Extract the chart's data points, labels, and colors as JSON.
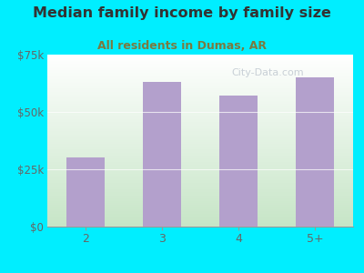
{
  "title": "Median family income by family size",
  "subtitle": "All residents in Dumas, AR",
  "categories": [
    "2",
    "3",
    "4",
    "5+"
  ],
  "values": [
    30000,
    63000,
    57000,
    65000
  ],
  "bar_color": "#b3a0cc",
  "ylim": [
    0,
    75000
  ],
  "yticks": [
    0,
    25000,
    50000,
    75000
  ],
  "ytick_labels": [
    "$0",
    "$25k",
    "$50k",
    "$75k"
  ],
  "bg_outer": "#00eeff",
  "title_color": "#333333",
  "subtitle_color": "#7a7a40",
  "tick_color": "#666666",
  "watermark": "City-Data.com",
  "watermark_color": "#c0c8d0"
}
